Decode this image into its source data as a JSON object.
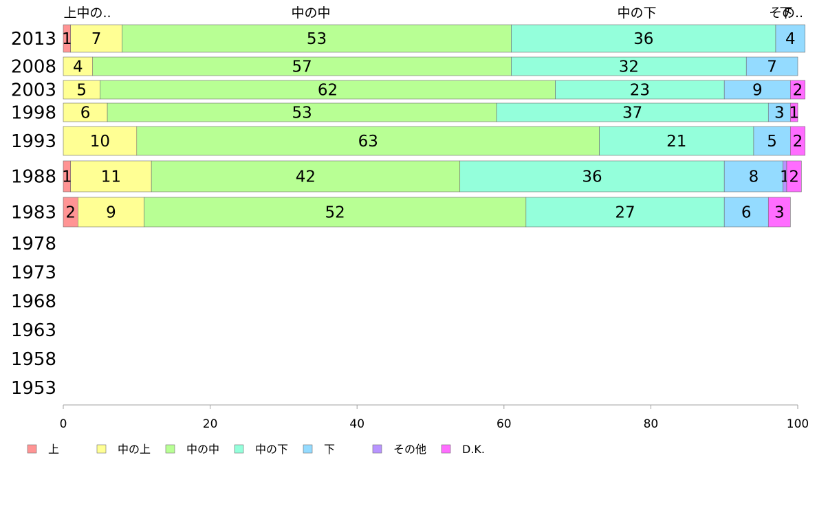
{
  "chart_data": {
    "type": "bar",
    "orientation": "horizontal",
    "stacked": true,
    "categories": [
      "2013",
      "2008",
      "2003",
      "1998",
      "1993",
      "1988",
      "1983",
      "1978",
      "1973",
      "1968",
      "1963",
      "1958",
      "1953"
    ],
    "series": [
      {
        "name": "上",
        "color": "#ff9494",
        "values": [
          1,
          0,
          0,
          0,
          0,
          1,
          2,
          null,
          null,
          null,
          null,
          null,
          null
        ]
      },
      {
        "name": "中の上",
        "color": "#ffff94",
        "values": [
          7,
          4,
          5,
          6,
          10,
          11,
          9,
          null,
          null,
          null,
          null,
          null,
          null
        ]
      },
      {
        "name": "中の中",
        "color": "#b8ff94",
        "values": [
          53,
          57,
          62,
          53,
          63,
          42,
          52,
          null,
          null,
          null,
          null,
          null,
          null
        ]
      },
      {
        "name": "中の下",
        "color": "#94ffdb",
        "values": [
          36,
          32,
          23,
          37,
          21,
          36,
          27,
          null,
          null,
          null,
          null,
          null,
          null
        ]
      },
      {
        "name": "下",
        "color": "#94dbff",
        "values": [
          4,
          7,
          9,
          3,
          5,
          8,
          6,
          null,
          null,
          null,
          null,
          null,
          null
        ]
      },
      {
        "name": "その他",
        "color": "#b894ff",
        "values": [
          0,
          0,
          0,
          0,
          0,
          0.5,
          0,
          null,
          null,
          null,
          null,
          null,
          null
        ]
      },
      {
        "name": "D.K.",
        "color": "#ff6dff",
        "values": [
          0,
          0,
          2,
          1,
          2,
          2,
          3,
          null,
          null,
          null,
          null,
          null,
          null
        ]
      }
    ],
    "segment_labels": [
      [
        "1",
        "7",
        "53",
        "36",
        "4",
        "",
        ""
      ],
      [
        "",
        "4",
        "57",
        "32",
        "7",
        "",
        ""
      ],
      [
        "",
        "5",
        "62",
        "23",
        "9",
        "",
        "2"
      ],
      [
        "",
        "6",
        "53",
        "37",
        "3",
        "",
        "1"
      ],
      [
        "",
        "10",
        "63",
        "21",
        "5",
        "",
        "2"
      ],
      [
        "1",
        "11",
        "42",
        "36",
        "8",
        "1",
        "2"
      ],
      [
        "2",
        "9",
        "52",
        "27",
        "6",
        "",
        "3"
      ],
      [],
      [],
      [],
      [],
      [],
      []
    ],
    "top_labels": [
      "上中の..",
      "中の中",
      "中の下",
      "下",
      "その.."
    ],
    "xlim": [
      0,
      100
    ],
    "xticks": [
      0,
      20,
      40,
      60,
      80,
      100
    ],
    "legend": [
      "上",
      "中の上",
      "中の中",
      "中の下",
      "下",
      "その他",
      "D.K."
    ],
    "legend_position": "bottom",
    "grid": false
  }
}
